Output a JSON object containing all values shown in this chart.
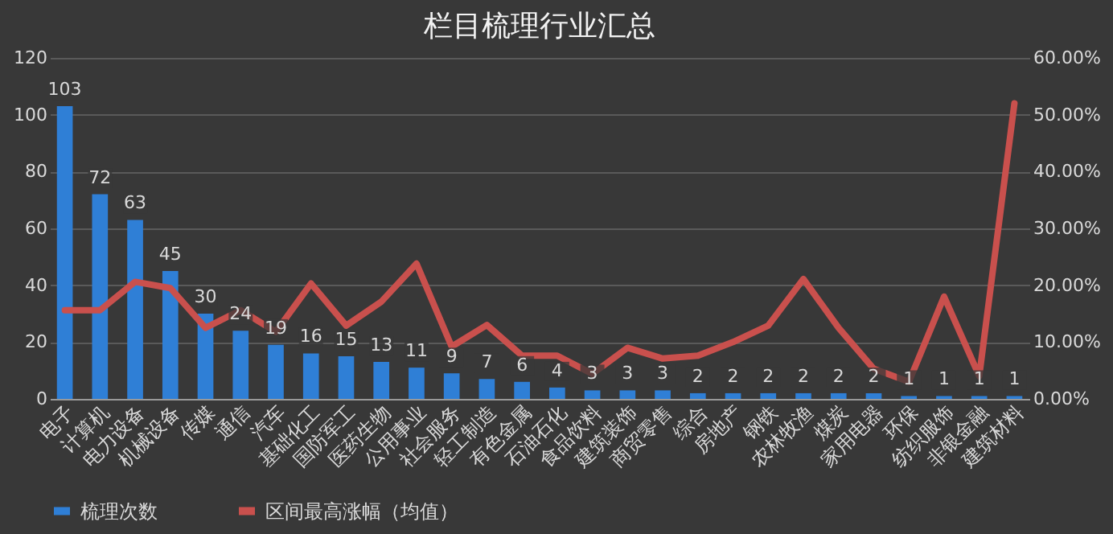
{
  "chart_data": {
    "type": "bar",
    "title": "栏目梳理行业汇总",
    "categories": [
      "电子",
      "计算机",
      "电力设备",
      "机械设备",
      "传媒",
      "通信",
      "汽车",
      "基础化工",
      "国防军工",
      "医药生物",
      "公用事业",
      "社会服务",
      "轻工制造",
      "有色金属",
      "石油石化",
      "食品饮料",
      "建筑装饰",
      "商贸零售",
      "综合",
      "房地产",
      "钢铁",
      "农林牧渔",
      "煤炭",
      "家用电器",
      "环保",
      "纺织服饰",
      "非银金融",
      "建筑材料"
    ],
    "series": [
      {
        "name": "梳理次数",
        "color": "#2f7fd6",
        "values": [
          103,
          72,
          63,
          45,
          30,
          24,
          19,
          16,
          15,
          13,
          11,
          9,
          7,
          6,
          4,
          3,
          3,
          3,
          2,
          2,
          2,
          2,
          2,
          2,
          1,
          1,
          1,
          1
        ],
        "value_labels": [
          "103",
          "72",
          "63",
          "45",
          "30",
          "24",
          "19",
          "16",
          "15",
          "13",
          "11",
          "9",
          "7",
          "6",
          "4",
          "3",
          "3",
          "3",
          "2",
          "2",
          "2",
          "2",
          "2",
          "2",
          "1",
          "1",
          "1",
          "1"
        ]
      },
      {
        "name": "区间最高涨幅（均值）",
        "type": "line",
        "axis": "y2",
        "color": "#c9504d",
        "values": [
          15.6,
          15.6,
          20.6,
          19.5,
          12.5,
          15.6,
          11.8,
          20.3,
          12.9,
          17.1,
          23.8,
          9.2,
          13.0,
          7.6,
          7.6,
          4.4,
          9.0,
          7.1,
          7.6,
          10.0,
          12.9,
          21.1,
          12.5,
          5.3,
          3.0,
          18.0,
          4.0,
          52.0
        ]
      }
    ],
    "ylim": [
      0,
      120
    ],
    "yticks": [
      0,
      20,
      40,
      60,
      80,
      100,
      120
    ],
    "y2lim": [
      0,
      60
    ],
    "y2ticks": [
      {
        "value": 0,
        "label": "0.00%"
      },
      {
        "value": 10,
        "label": "10.00%"
      },
      {
        "value": 20,
        "label": "20.00%"
      },
      {
        "value": 30,
        "label": "30.00%"
      },
      {
        "value": 40,
        "label": "40.00%"
      },
      {
        "value": 50,
        "label": "50.00%"
      },
      {
        "value": 60,
        "label": "60.00%"
      }
    ],
    "grid": "y",
    "legend": "bottom",
    "line_style": "solid",
    "marker": "none"
  }
}
